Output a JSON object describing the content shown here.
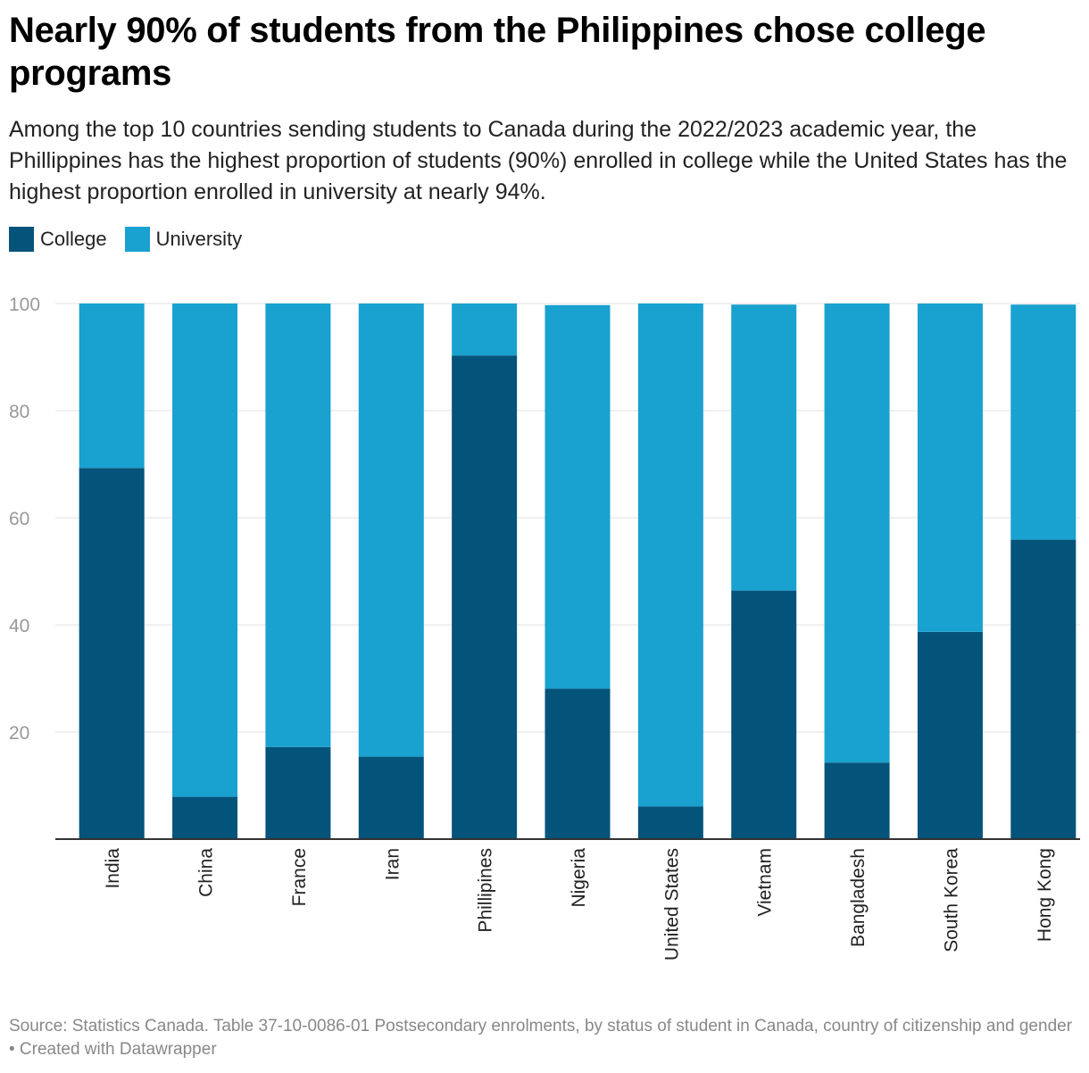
{
  "title": "Nearly 90% of students from the Philippines chose college programs",
  "subtitle": "Among the top 10 countries sending students to Canada during the 2022/2023 academic year, the Phillippines has the highest proportion of students (90%) enrolled in college while the United States has the highest proportion enrolled in university at nearly 94%.",
  "footer": "Source: Statistics Canada. Table 37-10-0086-01 Postsecondary enrolments, by status of student in Canada, country of citizenship and gender • Created with Datawrapper",
  "colors": {
    "college": "#03537a",
    "university": "#19a1d0",
    "axis": "#333333",
    "grid": "#e0e0e0",
    "tick": "#999999"
  },
  "chart_data": {
    "type": "bar",
    "stacked": true,
    "categories": [
      "India",
      "China",
      "France",
      "Iran",
      "Phillipines",
      "Nigeria",
      "United States",
      "Vietnam",
      "Bangladesh",
      "South Korea",
      "Hong Kong"
    ],
    "series": [
      {
        "name": "College",
        "values": [
          69.3,
          7.9,
          17.2,
          15.4,
          90.3,
          28.1,
          6.1,
          46.4,
          14.3,
          38.7,
          55.9
        ]
      },
      {
        "name": "University",
        "values": [
          30.7,
          92.1,
          82.8,
          84.6,
          9.7,
          71.6,
          93.9,
          53.4,
          85.7,
          61.3,
          43.9
        ]
      }
    ],
    "ylim": [
      0,
      100
    ],
    "yticks": [
      20,
      40,
      60,
      80,
      100
    ],
    "grid": true,
    "legend_position": "top-left",
    "xlabel": "",
    "ylabel": ""
  }
}
